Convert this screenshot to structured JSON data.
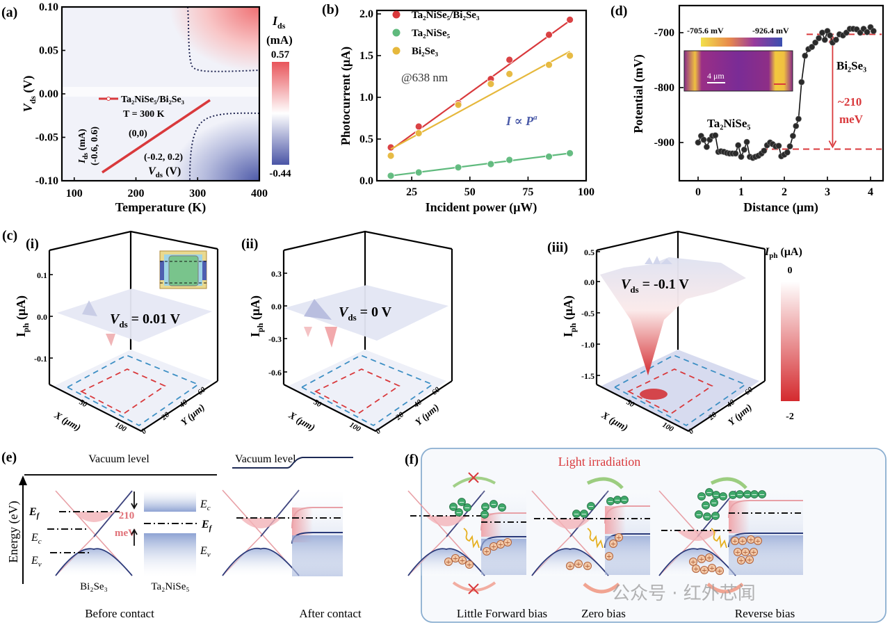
{
  "chart_data": [
    {
      "panel": "(a)",
      "type": "heatmap",
      "xlabel": "Temperature (K)",
      "ylabel": {
        "var": "V",
        "sub": "ds",
        "unit": " (V)"
      },
      "xlim": [
        80,
        400
      ],
      "ylim": [
        -0.1,
        0.1
      ],
      "xticks": [
        "100",
        "200",
        "300",
        "400"
      ],
      "yticks": [
        "0.10",
        "0.05",
        "0.00",
        "-0.05",
        "-0.10"
      ],
      "colorbar": {
        "title_var": "I",
        "title_sub": "ds",
        "unit": "(mA)",
        "max": "0.57",
        "min": "-0.44",
        "colors": [
          "#e8545a",
          "#ffffff",
          "#4a55a6"
        ]
      },
      "inset": {
        "legend": "Ta₂NiSe₅/Bi₂Se₃",
        "temperature": "T = 300 K",
        "origin": "(0,0)",
        "yaxis": {
          "var": "I",
          "sub": "ds",
          "unit": " (mA)"
        },
        "yrange": "(-0.6, 0.6)",
        "xrange": "(-0.2, 0.2)",
        "xaxis": {
          "var": "V",
          "sub": "ds",
          "unit": " (V)"
        },
        "line_color": "#d9393c"
      }
    },
    {
      "panel": "(b)",
      "type": "scatter",
      "xlabel": "Incident power (μW)",
      "ylabel": "Photocurrent (μA)",
      "xlim": [
        10,
        100
      ],
      "ylim": [
        0,
        2.0
      ],
      "xticks": [
        "25",
        "50",
        "75",
        "100"
      ],
      "yticks": [
        "2.0",
        "1.5",
        "1.0",
        "0.5",
        "0.0"
      ],
      "legend_position": "top-left",
      "annotation": "@638 nm",
      "law": "I ∝ P",
      "law_exp": "a",
      "x": [
        16,
        28,
        45,
        59,
        67,
        84,
        93
      ],
      "series": [
        {
          "name": "Ta₂NiSe₅/Bi₂Se₃",
          "color": "#d9393c",
          "values": [
            0.4,
            0.65,
            0.93,
            1.22,
            1.45,
            1.75,
            1.93
          ],
          "fit": [
            0.37,
            1.92
          ]
        },
        {
          "name": "Ta₂NiSe₅",
          "color": "#5fba7d",
          "values": [
            0.06,
            0.1,
            0.16,
            0.2,
            0.25,
            0.29,
            0.33
          ],
          "fit": [
            0.06,
            0.33
          ]
        },
        {
          "name": "Bi₂Se₃",
          "color": "#e6b83c",
          "values": [
            0.3,
            0.57,
            0.91,
            1.16,
            1.28,
            1.39,
            1.5
          ],
          "fit": [
            0.38,
            1.55
          ]
        }
      ]
    },
    {
      "panel": "(c)",
      "type": "surface",
      "subpanels": [
        {
          "label": "(i)",
          "annotation_var": "V",
          "annotation_sub": "ds",
          "annotation_val": " = 0.01 V",
          "zticks": [
            "0.1",
            "0.0",
            "-0.1"
          ]
        },
        {
          "label": "(ii)",
          "annotation_var": "V",
          "annotation_sub": "ds",
          "annotation_val": " = 0 V",
          "zticks": [
            "0.3",
            "0.0",
            "-0.3",
            "-0.6"
          ]
        },
        {
          "label": "(iii)",
          "annotation_var": "V",
          "annotation_sub": "ds",
          "annotation_val": " = -0.1 V",
          "zticks": [
            "0.5",
            "0.0",
            "-0.5",
            "-1.0",
            "-1.5"
          ]
        }
      ],
      "zlabel": {
        "var": "I",
        "sub": "ph",
        "unit": " (μA)"
      },
      "xlabel": "X (μm)",
      "ylabel": "Y (μm)",
      "xticks": [
        "50",
        "100"
      ],
      "yticks": [
        "0",
        "20",
        "40",
        "60"
      ],
      "colorbar": {
        "title_var": "I",
        "title_sub": "ph",
        "unit": " (μA)",
        "max": "0",
        "min": "-2",
        "colors": [
          "#ffffff",
          "#d42a2e"
        ]
      }
    },
    {
      "panel": "(d)",
      "type": "line",
      "xlabel": "Distance (μm)",
      "ylabel": "Potential (mV)",
      "xlim": [
        -0.45,
        4.3
      ],
      "ylim": [
        -970,
        -650
      ],
      "xticks": [
        "0",
        "1",
        "2",
        "3",
        "4"
      ],
      "yticks": [
        "-700",
        "-800",
        "-900"
      ],
      "x": [
        0.0,
        0.07,
        0.13,
        0.2,
        0.27,
        0.33,
        0.4,
        0.47,
        0.53,
        0.6,
        0.67,
        0.73,
        0.8,
        0.87,
        0.93,
        1.0,
        1.07,
        1.13,
        1.2,
        1.27,
        1.33,
        1.4,
        1.47,
        1.53,
        1.6,
        1.67,
        1.73,
        1.8,
        1.87,
        1.93,
        2.0,
        2.07,
        2.13,
        2.2,
        2.27,
        2.33,
        2.4,
        2.48,
        2.56,
        2.64,
        2.72,
        2.8,
        2.88,
        2.94,
        3.0,
        3.06,
        3.12,
        3.2,
        3.28,
        3.36,
        3.44,
        3.52,
        3.6,
        3.68,
        3.76,
        3.84,
        3.92,
        4.0,
        4.07
      ],
      "y": [
        -900,
        -888,
        -895,
        -908,
        -895,
        -888,
        -887,
        -917,
        -916,
        -917,
        -919,
        -920,
        -920,
        -920,
        -905,
        -926,
        -913,
        -899,
        -926,
        -928,
        -926,
        -924,
        -920,
        -915,
        -905,
        -900,
        -903,
        -907,
        -906,
        -925,
        -922,
        -918,
        -907,
        -888,
        -870,
        -857,
        -790,
        -742,
        -730,
        -726,
        -718,
        -710,
        -700,
        -713,
        -697,
        -705,
        -718,
        -713,
        -703,
        -705,
        -700,
        -693,
        -693,
        -694,
        -700,
        -693,
        -699,
        -690,
        -697
      ],
      "reference_levels": [
        -703,
        -912
      ],
      "labels": {
        "top": "Bi₂Se₃",
        "bottom": "Ta₂NiSe₅",
        "gap": "~210",
        "gap_unit": "meV"
      },
      "inset": {
        "cbar_max": "-705.6 mV",
        "cbar_min": "-926.4 mV",
        "scale": "4 μm",
        "colors": [
          "#f2e04a",
          "#e88a4c",
          "#9a3a9c",
          "#3a4fb0"
        ]
      }
    }
  ],
  "panel_e": {
    "label": "(e)",
    "vacuum_before": "Vacuum level",
    "vacuum_after": "Vacuum level",
    "energy_axis": "Energy (eV)",
    "ef": "E",
    "ef_sub": "f",
    "ec": "E",
    "ec_sub": "c",
    "ev": "E",
    "ev_sub": "v",
    "gap_value": "210",
    "gap_unit": "meV",
    "material_left": "Bi₂Se₃",
    "material_right": "Ta₂NiSe₅",
    "caption_before": "Before contact",
    "caption_after": "After contact"
  },
  "panel_f": {
    "label": "(f)",
    "title": "Light irradiation",
    "captions": [
      "Little Forward bias",
      "Zero bias",
      "Reverse bias"
    ],
    "electron_sign": "−",
    "hole_sign": "+"
  },
  "watermark": "公众号 · 红外芯闻"
}
